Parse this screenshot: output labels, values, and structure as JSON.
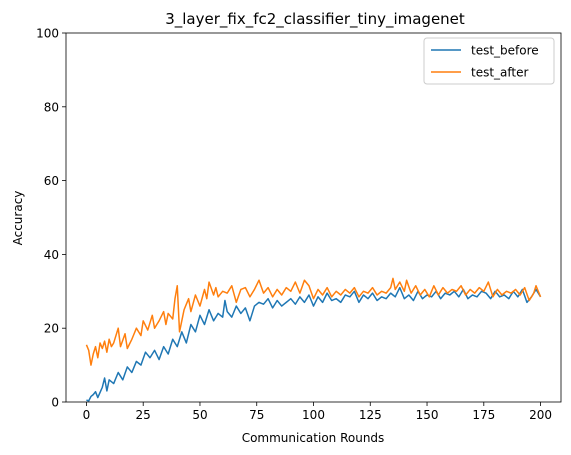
{
  "chart_data": {
    "type": "line",
    "title": "3_layer_fix_fc2_classifier_tiny_imagenet",
    "xlabel": "Communication Rounds",
    "ylabel": "Accuracy",
    "xlim": [
      -9,
      209
    ],
    "ylim": [
      0,
      100
    ],
    "xticks": [
      "0",
      "25",
      "50",
      "75",
      "100",
      "125",
      "150",
      "175",
      "200"
    ],
    "yticks": [
      "0",
      "20",
      "40",
      "60",
      "80",
      "100"
    ],
    "grid": false,
    "legend_position": "top-right",
    "series": [
      {
        "name": "test_before",
        "color": "#1f77b4",
        "anchors": [
          [
            0,
            0.5
          ],
          [
            1,
            0.3
          ],
          [
            2,
            1.5
          ],
          [
            3,
            2.0
          ],
          [
            4,
            2.8
          ],
          [
            5,
            1.2
          ],
          [
            7,
            4.0
          ],
          [
            8,
            6.5
          ],
          [
            9,
            3.0
          ],
          [
            10,
            6.0
          ],
          [
            12,
            5.0
          ],
          [
            14,
            8.0
          ],
          [
            16,
            6.0
          ],
          [
            18,
            9.5
          ],
          [
            20,
            8.0
          ],
          [
            22,
            11.0
          ],
          [
            24,
            10.0
          ],
          [
            26,
            13.5
          ],
          [
            28,
            12.0
          ],
          [
            30,
            14.0
          ],
          [
            32,
            11.5
          ],
          [
            34,
            15.0
          ],
          [
            36,
            13.0
          ],
          [
            38,
            17.0
          ],
          [
            40,
            15.0
          ],
          [
            42,
            19.0
          ],
          [
            44,
            16.0
          ],
          [
            46,
            21.0
          ],
          [
            48,
            19.0
          ],
          [
            50,
            23.5
          ],
          [
            52,
            21.0
          ],
          [
            54,
            25.0
          ],
          [
            56,
            22.0
          ],
          [
            58,
            24.0
          ],
          [
            60,
            23.0
          ],
          [
            61,
            27.5
          ],
          [
            62,
            24.5
          ],
          [
            64,
            23.0
          ],
          [
            66,
            26.0
          ],
          [
            68,
            24.0
          ],
          [
            70,
            25.5
          ],
          [
            72,
            22.0
          ],
          [
            74,
            26.0
          ],
          [
            76,
            27.0
          ],
          [
            78,
            26.5
          ],
          [
            80,
            28.0
          ],
          [
            82,
            25.5
          ],
          [
            84,
            27.5
          ],
          [
            86,
            26.0
          ],
          [
            88,
            27.0
          ],
          [
            90,
            28.0
          ],
          [
            92,
            26.5
          ],
          [
            94,
            28.5
          ],
          [
            96,
            27.0
          ],
          [
            98,
            29.0
          ],
          [
            100,
            26.0
          ],
          [
            102,
            28.5
          ],
          [
            104,
            27.0
          ],
          [
            106,
            29.5
          ],
          [
            108,
            27.5
          ],
          [
            110,
            28.0
          ],
          [
            112,
            27.0
          ],
          [
            114,
            29.0
          ],
          [
            116,
            28.5
          ],
          [
            118,
            30.0
          ],
          [
            120,
            27.0
          ],
          [
            122,
            29.0
          ],
          [
            124,
            28.0
          ],
          [
            126,
            29.5
          ],
          [
            128,
            27.5
          ],
          [
            130,
            28.5
          ],
          [
            132,
            28.0
          ],
          [
            134,
            29.5
          ],
          [
            136,
            28.5
          ],
          [
            138,
            31.0
          ],
          [
            140,
            28.0
          ],
          [
            142,
            29.0
          ],
          [
            144,
            27.5
          ],
          [
            146,
            30.0
          ],
          [
            148,
            28.0
          ],
          [
            150,
            29.0
          ],
          [
            152,
            28.5
          ],
          [
            154,
            30.0
          ],
          [
            156,
            28.0
          ],
          [
            158,
            29.5
          ],
          [
            160,
            29.0
          ],
          [
            162,
            30.0
          ],
          [
            164,
            28.5
          ],
          [
            166,
            30.5
          ],
          [
            168,
            28.0
          ],
          [
            170,
            29.0
          ],
          [
            172,
            28.5
          ],
          [
            174,
            30.0
          ],
          [
            176,
            29.5
          ],
          [
            178,
            28.0
          ],
          [
            180,
            30.0
          ],
          [
            182,
            28.5
          ],
          [
            184,
            29.0
          ],
          [
            186,
            28.0
          ],
          [
            188,
            30.0
          ],
          [
            190,
            28.5
          ],
          [
            192,
            30.5
          ],
          [
            194,
            27.0
          ],
          [
            196,
            28.5
          ],
          [
            198,
            30.5
          ],
          [
            200,
            28.5
          ]
        ]
      },
      {
        "name": "test_after",
        "color": "#ff7f0e",
        "anchors": [
          [
            0,
            15.5
          ],
          [
            1,
            14.0
          ],
          [
            2,
            10.0
          ],
          [
            3,
            13.0
          ],
          [
            4,
            15.0
          ],
          [
            5,
            12.0
          ],
          [
            6,
            16.0
          ],
          [
            7,
            14.5
          ],
          [
            8,
            16.5
          ],
          [
            9,
            13.5
          ],
          [
            10,
            17.0
          ],
          [
            11,
            15.0
          ],
          [
            12,
            16.0
          ],
          [
            14,
            20.0
          ],
          [
            15,
            15.0
          ],
          [
            17,
            18.5
          ],
          [
            18,
            14.5
          ],
          [
            20,
            17.0
          ],
          [
            22,
            20.0
          ],
          [
            24,
            18.0
          ],
          [
            25,
            22.0
          ],
          [
            27,
            19.5
          ],
          [
            29,
            23.5
          ],
          [
            30,
            20.0
          ],
          [
            32,
            22.0
          ],
          [
            34,
            24.5
          ],
          [
            35,
            21.0
          ],
          [
            36,
            24.0
          ],
          [
            38,
            22.5
          ],
          [
            39,
            28.0
          ],
          [
            40,
            31.5
          ],
          [
            41,
            19.0
          ],
          [
            43,
            25.0
          ],
          [
            45,
            28.0
          ],
          [
            46,
            24.5
          ],
          [
            48,
            29.0
          ],
          [
            50,
            26.0
          ],
          [
            52,
            30.5
          ],
          [
            53,
            28.0
          ],
          [
            54,
            32.5
          ],
          [
            56,
            29.0
          ],
          [
            57,
            31.0
          ],
          [
            58,
            28.5
          ],
          [
            60,
            30.0
          ],
          [
            62,
            29.5
          ],
          [
            64,
            31.5
          ],
          [
            66,
            27.0
          ],
          [
            68,
            30.5
          ],
          [
            70,
            31.0
          ],
          [
            72,
            28.5
          ],
          [
            74,
            30.5
          ],
          [
            76,
            33.0
          ],
          [
            78,
            29.5
          ],
          [
            80,
            31.0
          ],
          [
            82,
            28.5
          ],
          [
            84,
            30.5
          ],
          [
            86,
            29.0
          ],
          [
            88,
            31.0
          ],
          [
            90,
            30.0
          ],
          [
            92,
            32.5
          ],
          [
            94,
            29.5
          ],
          [
            96,
            33.0
          ],
          [
            98,
            31.5
          ],
          [
            100,
            28.0
          ],
          [
            102,
            30.5
          ],
          [
            104,
            29.0
          ],
          [
            106,
            31.0
          ],
          [
            108,
            28.5
          ],
          [
            110,
            30.0
          ],
          [
            112,
            29.0
          ],
          [
            114,
            30.5
          ],
          [
            116,
            29.5
          ],
          [
            118,
            31.0
          ],
          [
            120,
            28.5
          ],
          [
            122,
            30.0
          ],
          [
            124,
            29.5
          ],
          [
            126,
            31.0
          ],
          [
            128,
            29.0
          ],
          [
            130,
            30.0
          ],
          [
            132,
            29.5
          ],
          [
            134,
            31.0
          ],
          [
            135,
            33.5
          ],
          [
            136,
            30.5
          ],
          [
            138,
            32.5
          ],
          [
            140,
            30.0
          ],
          [
            141,
            33.0
          ],
          [
            143,
            29.5
          ],
          [
            145,
            31.5
          ],
          [
            147,
            29.0
          ],
          [
            149,
            30.5
          ],
          [
            151,
            28.5
          ],
          [
            153,
            31.5
          ],
          [
            155,
            29.0
          ],
          [
            157,
            31.0
          ],
          [
            159,
            29.5
          ],
          [
            161,
            30.5
          ],
          [
            163,
            30.0
          ],
          [
            165,
            31.5
          ],
          [
            167,
            29.0
          ],
          [
            169,
            30.5
          ],
          [
            171,
            29.5
          ],
          [
            173,
            31.0
          ],
          [
            175,
            30.0
          ],
          [
            177,
            32.5
          ],
          [
            179,
            28.5
          ],
          [
            181,
            30.5
          ],
          [
            183,
            29.0
          ],
          [
            185,
            30.0
          ],
          [
            187,
            29.5
          ],
          [
            189,
            30.5
          ],
          [
            191,
            29.0
          ],
          [
            193,
            31.0
          ],
          [
            195,
            27.5
          ],
          [
            197,
            29.5
          ],
          [
            198,
            31.5
          ],
          [
            200,
            28.5
          ]
        ]
      }
    ]
  }
}
